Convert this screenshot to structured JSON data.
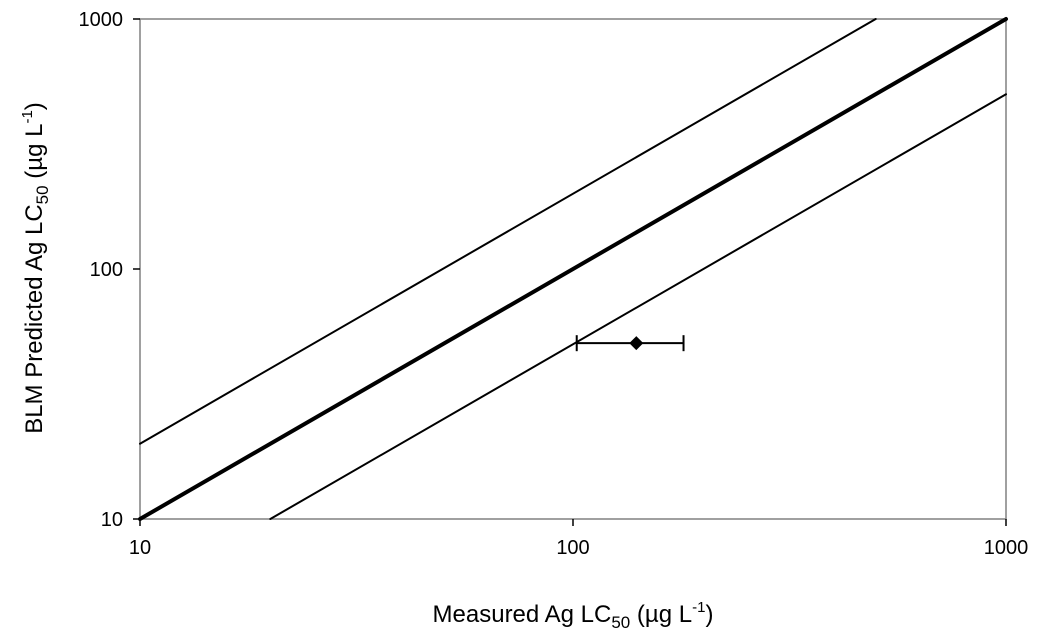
{
  "chart_data": {
    "type": "scatter",
    "title": "",
    "x_scale": "log",
    "y_scale": "log",
    "xlim": [
      10,
      1000
    ],
    "ylim": [
      10,
      1000
    ],
    "grid": false,
    "legend": "none",
    "xlabel": {
      "main": "Measured Ag LC",
      "sub": "50",
      "unit_open": " (",
      "mu": "µ",
      "unit_mid": "g L",
      "sup": "-1",
      "unit_close": ")"
    },
    "ylabel": {
      "main": "BLM Predicted Ag LC",
      "sub": "50",
      "unit_open": " (",
      "mu": "µ",
      "unit_mid": "g L",
      "sup": "-1",
      "unit_close": ")"
    },
    "x_ticks": [
      {
        "value": 10,
        "label": "10"
      },
      {
        "value": 100,
        "label": "100"
      },
      {
        "value": 1000,
        "label": "1000"
      }
    ],
    "y_ticks": [
      {
        "value": 10,
        "label": "10"
      },
      {
        "value": 100,
        "label": "100"
      },
      {
        "value": 1000,
        "label": "1000"
      }
    ],
    "lines": [
      {
        "role": "upper-bound",
        "points": [
          [
            10,
            20
          ],
          [
            500,
            1000
          ]
        ],
        "weight": "thin"
      },
      {
        "role": "one-to-one",
        "points": [
          [
            10,
            10
          ],
          [
            1000,
            1000
          ]
        ],
        "weight": "thick"
      },
      {
        "role": "lower-bound",
        "points": [
          [
            20,
            10
          ],
          [
            1000,
            500
          ]
        ],
        "weight": "thin"
      }
    ],
    "points": [
      {
        "x": 140,
        "y": 50.5,
        "x_err_low": 102,
        "x_err_high": 180,
        "marker": "diamond"
      }
    ],
    "colors": {
      "line": "#000000",
      "marker": "#000000",
      "frame": "#808080",
      "background": "#ffffff"
    }
  }
}
